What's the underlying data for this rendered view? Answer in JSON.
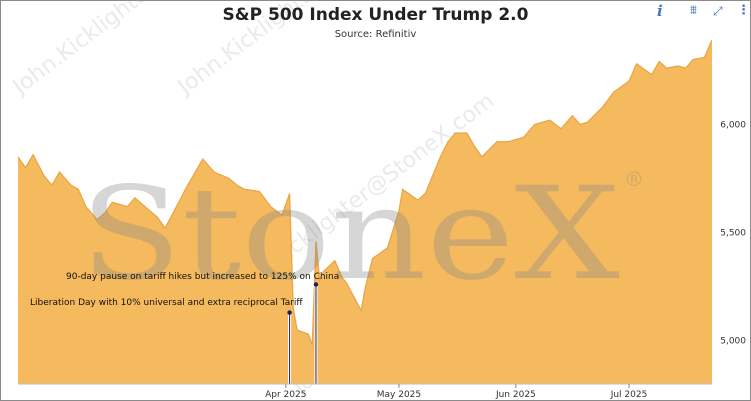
{
  "toolbar": {
    "info_icon": "info-icon",
    "filter_icon": "filter-icon",
    "expand_icon": "expand-icon",
    "more_icon": "more-icon",
    "info_glyph": "i",
    "filter_glyph": "⩩",
    "expand_glyph": "⤢",
    "more_glyph": "⋮"
  },
  "watermark": {
    "logo": "StoneX",
    "registered": "®",
    "email": "John.Kicklighter@StoneX.com"
  },
  "chart_data": {
    "type": "area",
    "title": "S&P 500 Index Under Trump 2.0",
    "subtitle": "Source: Refinitiv",
    "xlabel": "",
    "ylabel": "",
    "ylim": [
      4800,
      6390
    ],
    "xlim": [
      "2025-01-20",
      "2025-07-23"
    ],
    "x_ticks": [
      {
        "label": "Apr 2025",
        "date": "2025-04-01"
      },
      {
        "label": "May 2025",
        "date": "2025-05-01"
      },
      {
        "label": "Jun 2025",
        "date": "2025-06-01"
      },
      {
        "label": "Jul 2025",
        "date": "2025-07-01"
      }
    ],
    "y_ticks": [
      {
        "label": "5,000",
        "value": 5000
      },
      {
        "label": "5,500",
        "value": 5500
      },
      {
        "label": "6,000",
        "value": 6000
      }
    ],
    "colors": {
      "fill": "#f5b95e",
      "line": "#eaa440",
      "annotation": "#1a1f5c"
    },
    "grid": false,
    "legend": "none",
    "annotations": [
      {
        "date": "2025-04-02",
        "value": 5130,
        "label": "Liberation Day with 10% universal and extra reciprocal Tariff"
      },
      {
        "date": "2025-04-09",
        "value": 5260,
        "label": "90-day pause on tariff hikes but increased to 125% on China"
      }
    ],
    "series": [
      {
        "x": [
          "2025-01-20",
          "2025-01-22",
          "2025-01-24",
          "2025-01-27",
          "2025-01-29",
          "2025-01-31",
          "2025-02-03",
          "2025-02-05",
          "2025-02-07",
          "2025-02-10",
          "2025-02-12",
          "2025-02-14",
          "2025-02-18",
          "2025-02-20",
          "2025-02-24",
          "2025-02-26",
          "2025-02-28",
          "2025-03-03",
          "2025-03-06",
          "2025-03-10",
          "2025-03-13",
          "2025-03-17",
          "2025-03-19",
          "2025-03-21",
          "2025-03-25",
          "2025-03-28",
          "2025-03-31",
          "2025-04-02",
          "2025-04-03",
          "2025-04-04",
          "2025-04-07",
          "2025-04-08",
          "2025-04-09",
          "2025-04-10",
          "2025-04-11",
          "2025-04-14",
          "2025-04-16",
          "2025-04-17",
          "2025-04-21",
          "2025-04-22",
          "2025-04-24",
          "2025-04-28",
          "2025-05-01",
          "2025-05-02",
          "2025-05-06",
          "2025-05-08",
          "2025-05-12",
          "2025-05-14",
          "2025-05-16",
          "2025-05-19",
          "2025-05-21",
          "2025-05-23",
          "2025-05-27",
          "2025-05-30",
          "2025-06-03",
          "2025-06-06",
          "2025-06-10",
          "2025-06-13",
          "2025-06-16",
          "2025-06-18",
          "2025-06-20",
          "2025-06-24",
          "2025-06-27",
          "2025-07-01",
          "2025-07-03",
          "2025-07-07",
          "2025-07-09",
          "2025-07-11",
          "2025-07-14",
          "2025-07-16",
          "2025-07-18",
          "2025-07-21",
          "2025-07-23"
        ],
        "values": [
          5850,
          5800,
          5860,
          5760,
          5720,
          5780,
          5720,
          5700,
          5620,
          5560,
          5590,
          5640,
          5620,
          5660,
          5600,
          5570,
          5520,
          5620,
          5720,
          5840,
          5780,
          5750,
          5720,
          5700,
          5690,
          5620,
          5580,
          5680,
          5150,
          5050,
          5030,
          4980,
          5460,
          5280,
          5320,
          5370,
          5290,
          5270,
          5140,
          5240,
          5380,
          5430,
          5600,
          5700,
          5650,
          5680,
          5850,
          5920,
          5960,
          5960,
          5900,
          5850,
          5920,
          5920,
          5940,
          6000,
          6020,
          5980,
          6040,
          6000,
          6010,
          6080,
          6150,
          6200,
          6280,
          6230,
          6290,
          6260,
          6270,
          6260,
          6300,
          6310,
          6390
        ]
      }
    ]
  }
}
